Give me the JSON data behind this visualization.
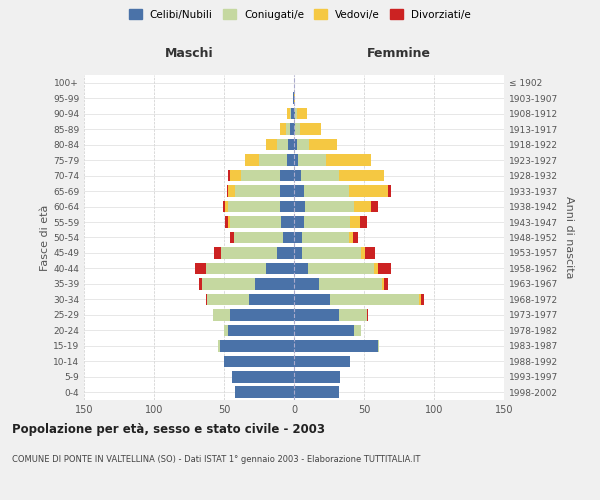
{
  "age_groups": [
    "0-4",
    "5-9",
    "10-14",
    "15-19",
    "20-24",
    "25-29",
    "30-34",
    "35-39",
    "40-44",
    "45-49",
    "50-54",
    "55-59",
    "60-64",
    "65-69",
    "70-74",
    "75-79",
    "80-84",
    "85-89",
    "90-94",
    "95-99",
    "100+"
  ],
  "birth_years": [
    "1998-2002",
    "1993-1997",
    "1988-1992",
    "1983-1987",
    "1978-1982",
    "1973-1977",
    "1968-1972",
    "1963-1967",
    "1958-1962",
    "1953-1957",
    "1948-1952",
    "1943-1947",
    "1938-1942",
    "1933-1937",
    "1928-1932",
    "1923-1927",
    "1918-1922",
    "1913-1917",
    "1908-1912",
    "1903-1907",
    "≤ 1902"
  ],
  "maschi": {
    "celibi": [
      42,
      44,
      50,
      53,
      47,
      46,
      32,
      28,
      20,
      12,
      8,
      9,
      10,
      10,
      10,
      5,
      4,
      3,
      2,
      1,
      0
    ],
    "coniugati": [
      0,
      0,
      0,
      1,
      3,
      12,
      30,
      38,
      43,
      40,
      35,
      37,
      37,
      32,
      28,
      20,
      8,
      3,
      1,
      0,
      0
    ],
    "vedovi": [
      0,
      0,
      0,
      0,
      0,
      0,
      0,
      0,
      0,
      0,
      0,
      1,
      2,
      5,
      8,
      10,
      8,
      4,
      2,
      0,
      0
    ],
    "divorziati": [
      0,
      0,
      0,
      0,
      0,
      0,
      1,
      2,
      8,
      5,
      3,
      2,
      2,
      1,
      1,
      0,
      0,
      0,
      0,
      0,
      0
    ]
  },
  "femmine": {
    "nubili": [
      32,
      33,
      40,
      60,
      43,
      32,
      26,
      18,
      10,
      6,
      6,
      7,
      8,
      7,
      5,
      3,
      2,
      1,
      1,
      0,
      0
    ],
    "coniugate": [
      0,
      0,
      0,
      1,
      5,
      20,
      63,
      45,
      47,
      42,
      33,
      33,
      35,
      32,
      27,
      20,
      9,
      3,
      1,
      0,
      0
    ],
    "vedove": [
      0,
      0,
      0,
      0,
      0,
      0,
      2,
      1,
      3,
      3,
      3,
      7,
      12,
      28,
      32,
      32,
      20,
      15,
      7,
      1,
      0
    ],
    "divorziate": [
      0,
      0,
      0,
      0,
      0,
      1,
      2,
      3,
      9,
      7,
      4,
      5,
      5,
      2,
      0,
      0,
      0,
      0,
      0,
      0,
      0
    ]
  },
  "colors": {
    "celibi": "#4a72a8",
    "coniugati": "#c5d8a0",
    "vedovi": "#f5c842",
    "divorziati": "#cc2222"
  },
  "xlim": 150,
  "title": "Popolazione per età, sesso e stato civile - 2003",
  "subtitle": "COMUNE DI PONTE IN VALTELLINA (SO) - Dati ISTAT 1° gennaio 2003 - Elaborazione TUTTITALIA.IT",
  "ylabel_left": "Fasce di età",
  "ylabel_right": "Anni di nascita",
  "xlabel_maschi": "Maschi",
  "xlabel_femmine": "Femmine",
  "bg_color": "#f0f0f0",
  "plot_bg_color": "#ffffff",
  "legend_labels": [
    "Celibi/Nubili",
    "Coniugati/e",
    "Vedovi/e",
    "Divorziati/e"
  ]
}
